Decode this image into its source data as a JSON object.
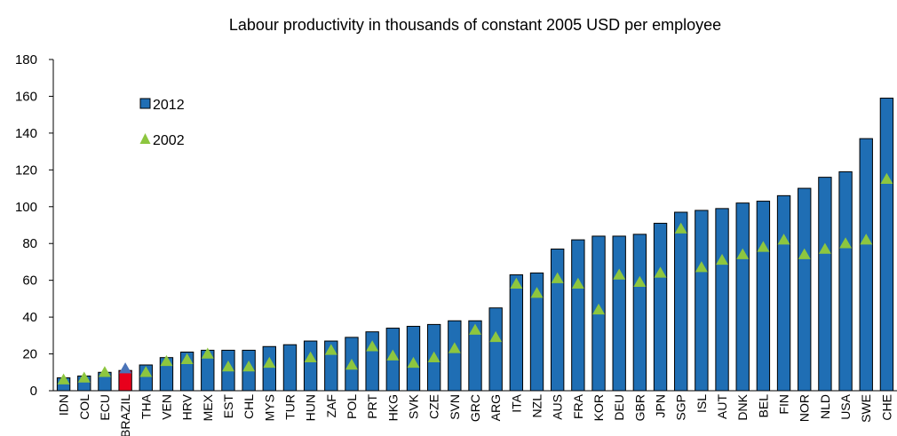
{
  "chart_data": {
    "type": "bar",
    "title": "Labour productivity in thousands of constant 2005 USD per employee",
    "xlabel": "",
    "ylabel": "",
    "ylim": [
      0,
      180
    ],
    "yticks": [
      0,
      20,
      40,
      60,
      80,
      100,
      120,
      140,
      160,
      180
    ],
    "categories": [
      "IDN",
      "COL",
      "ECU",
      "BRAZIL",
      "THA",
      "VEN",
      "HRV",
      "MEX",
      "EST",
      "CHL",
      "MYS",
      "TUR",
      "HUN",
      "ZAF",
      "POL",
      "PRT",
      "HKG",
      "SVK",
      "CZE",
      "SVN",
      "GRC",
      "ARG",
      "ITA",
      "NZL",
      "AUS",
      "FRA",
      "KOR",
      "DEU",
      "GBR",
      "JPN",
      "SGP",
      "ISL",
      "AUT",
      "DNK",
      "BEL",
      "FIN",
      "NOR",
      "NLD",
      "USA",
      "SWE",
      "CHE"
    ],
    "highlight_category": "BRAZIL",
    "legend_position": "top-left",
    "grid": false,
    "series": [
      {
        "name": "2012",
        "kind": "bar",
        "color": "#1f6eb4",
        "values": [
          7,
          8,
          10,
          11,
          14,
          18,
          21,
          22,
          22,
          22,
          24,
          25,
          27,
          27,
          29,
          32,
          34,
          35,
          36,
          38,
          38,
          45,
          63,
          64,
          77,
          82,
          84,
          84,
          85,
          91,
          97,
          98,
          99,
          102,
          103,
          106,
          110,
          116,
          119,
          137,
          159
        ]
      },
      {
        "name": "2002",
        "kind": "marker",
        "color": "#8dc63f",
        "values": [
          6,
          7,
          10,
          12,
          10,
          16,
          17,
          20,
          13,
          13,
          15,
          null,
          18,
          22,
          14,
          24,
          19,
          15,
          18,
          23,
          33,
          29,
          58,
          53,
          61,
          58,
          44,
          63,
          59,
          64,
          88,
          67,
          71,
          74,
          78,
          82,
          74,
          77,
          80,
          82,
          115
        ]
      }
    ],
    "highlight_colors": {
      "bar": "#e8001c",
      "marker": "#4a73b8"
    }
  }
}
